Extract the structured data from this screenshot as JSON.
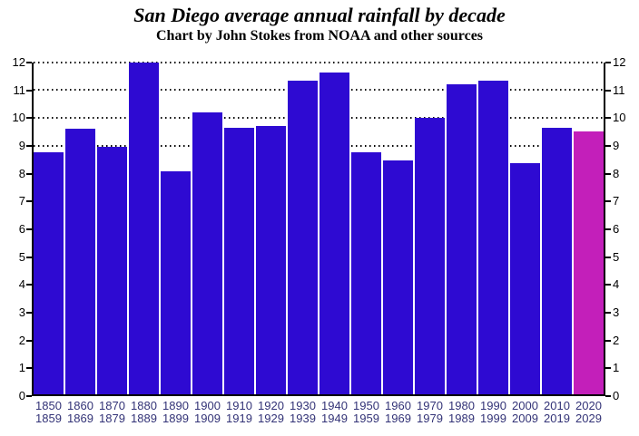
{
  "chart_data": {
    "type": "bar",
    "title": "San Diego average annual rainfall by decade",
    "subtitle": "Chart by John Stokes from NOAA and other sources",
    "xlabel": "",
    "ylabel": "",
    "ylim": [
      0,
      12
    ],
    "ytick_step": 1,
    "ytick_labels_both_sides": true,
    "grid": "horizontal-dotted",
    "legend": "none",
    "categories": [
      {
        "start": "1850",
        "end": "1859"
      },
      {
        "start": "1860",
        "end": "1869"
      },
      {
        "start": "1870",
        "end": "1879"
      },
      {
        "start": "1880",
        "end": "1889"
      },
      {
        "start": "1890",
        "end": "1899"
      },
      {
        "start": "1900",
        "end": "1909"
      },
      {
        "start": "1910",
        "end": "1919"
      },
      {
        "start": "1920",
        "end": "1929"
      },
      {
        "start": "1930",
        "end": "1939"
      },
      {
        "start": "1940",
        "end": "1949"
      },
      {
        "start": "1950",
        "end": "1959"
      },
      {
        "start": "1960",
        "end": "1969"
      },
      {
        "start": "1970",
        "end": "1979"
      },
      {
        "start": "1980",
        "end": "1989"
      },
      {
        "start": "1990",
        "end": "1999"
      },
      {
        "start": "2000",
        "end": "2009"
      },
      {
        "start": "2010",
        "end": "2019"
      },
      {
        "start": "2020",
        "end": "2029"
      }
    ],
    "values": [
      8.75,
      9.6,
      8.95,
      12.0,
      8.05,
      10.2,
      9.65,
      9.7,
      11.35,
      11.65,
      8.75,
      8.45,
      10.0,
      11.2,
      11.35,
      8.35,
      9.65,
      9.5
    ],
    "highlight_index": 17,
    "colors": {
      "bar_default": "#2e0ad2",
      "bar_highlight": "#c31fba",
      "x_label": "#333377",
      "axis": "#000000",
      "grid": "#000000",
      "background": "#ffffff"
    }
  }
}
